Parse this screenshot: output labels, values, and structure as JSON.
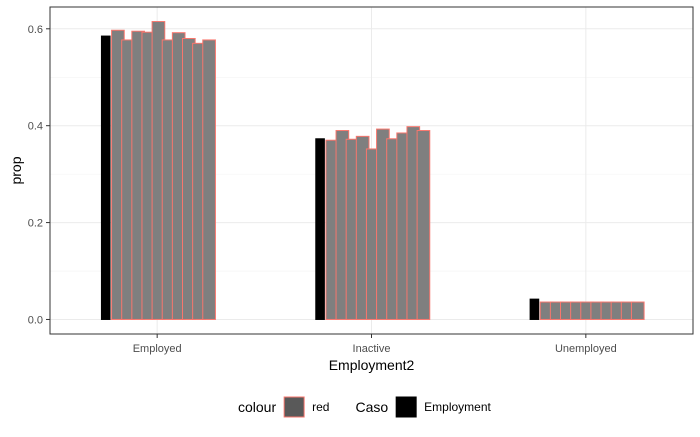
{
  "chart_data": {
    "type": "bar",
    "title": "",
    "xlabel": "Employment2",
    "ylabel": "prop",
    "categories": [
      "Employed",
      "Inactive",
      "Unemployed"
    ],
    "ylim": [
      -0.03,
      0.645
    ],
    "yticks": [
      0.0,
      0.2,
      0.4,
      0.6
    ],
    "ytick_labels": [
      "0.0",
      "0.2",
      "0.4",
      "0.6"
    ],
    "grid": true,
    "legend_position": "bottom",
    "series": [
      {
        "values": [
          0.585,
          0.373,
          0.042
        ],
        "fill": "#000000",
        "outline": "#000000"
      },
      {
        "values": [
          0.597,
          0.37,
          0.036
        ],
        "fill": "#7f7f7f",
        "outline": "#f8766d"
      },
      {
        "values": [
          0.577,
          0.39,
          0.036
        ],
        "fill": "#7f7f7f",
        "outline": "#f8766d"
      },
      {
        "values": [
          0.595,
          0.372,
          0.036
        ],
        "fill": "#7f7f7f",
        "outline": "#f8766d"
      },
      {
        "values": [
          0.593,
          0.378,
          0.036
        ],
        "fill": "#7f7f7f",
        "outline": "#f8766d"
      },
      {
        "values": [
          0.615,
          0.352,
          0.036
        ],
        "fill": "#7f7f7f",
        "outline": "#f8766d"
      },
      {
        "values": [
          0.577,
          0.393,
          0.036
        ],
        "fill": "#7f7f7f",
        "outline": "#f8766d"
      },
      {
        "values": [
          0.592,
          0.373,
          0.036
        ],
        "fill": "#7f7f7f",
        "outline": "#f8766d"
      },
      {
        "values": [
          0.58,
          0.385,
          0.036
        ],
        "fill": "#7f7f7f",
        "outline": "#f8766d"
      },
      {
        "values": [
          0.57,
          0.398,
          0.036
        ],
        "fill": "#7f7f7f",
        "outline": "#f8766d"
      },
      {
        "values": [
          0.577,
          0.39,
          0.036
        ],
        "fill": "#7f7f7f",
        "outline": "#f8766d"
      }
    ],
    "legend": [
      {
        "title": "colour",
        "label": "red",
        "fill": "#595959",
        "outline": "#f8766d"
      },
      {
        "title": "Caso",
        "label": "Employment",
        "fill": "#000000",
        "outline": "#000000"
      }
    ]
  }
}
